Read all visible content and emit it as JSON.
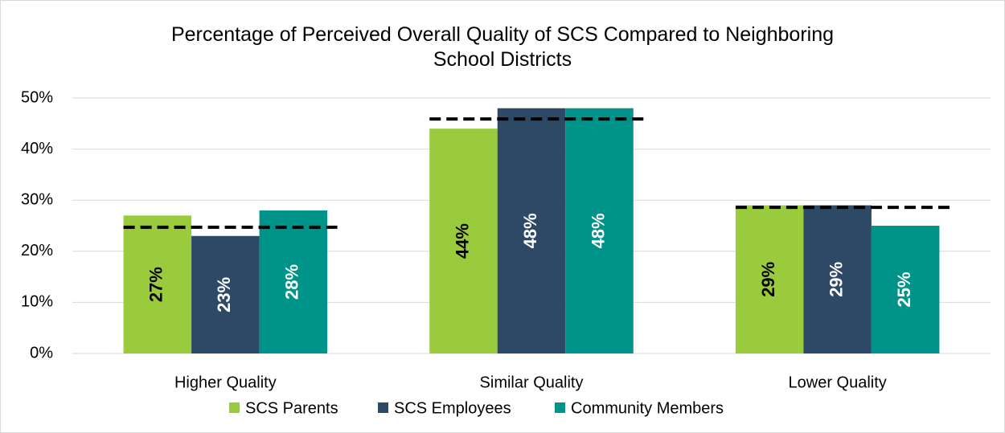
{
  "chart_data": {
    "type": "bar",
    "title": "Percentage of Perceived Overall Quality of SCS Compared to Neighboring School Districts",
    "categories": [
      "Higher Quality",
      "Similar Quality",
      "Lower Quality"
    ],
    "series": [
      {
        "name": "SCS Parents",
        "color": "#9acb3c",
        "values": [
          27,
          44,
          29
        ],
        "value_labels": [
          "27%",
          "44%",
          "29%"
        ],
        "label_color": "#000000"
      },
      {
        "name": "SCS Employees",
        "color": "#2e4966",
        "values": [
          23,
          48,
          29
        ],
        "value_labels": [
          "23%",
          "48%",
          "29%"
        ],
        "label_color": "#ffffff"
      },
      {
        "name": "Community Members",
        "color": "#00938a",
        "values": [
          28,
          48,
          25
        ],
        "value_labels": [
          "28%",
          "48%",
          "25%"
        ],
        "label_color": "#ffffff"
      }
    ],
    "reference_lines": [
      24.7,
      45.9,
      28.6
    ],
    "ylim": [
      0,
      50
    ],
    "yticks": [
      {
        "value": 0,
        "label": "0%"
      },
      {
        "value": 10,
        "label": "10%"
      },
      {
        "value": 20,
        "label": "20%"
      },
      {
        "value": 30,
        "label": "30%"
      },
      {
        "value": 40,
        "label": "40%"
      },
      {
        "value": 50,
        "label": "50%"
      }
    ],
    "grid": true,
    "legend": "bottom"
  }
}
